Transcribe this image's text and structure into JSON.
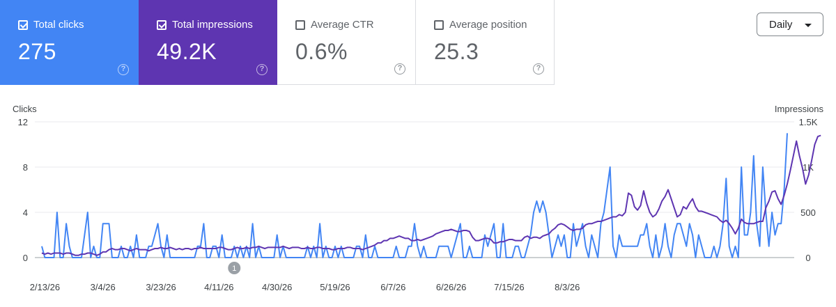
{
  "metrics": [
    {
      "label": "Total clicks",
      "value": "275",
      "checked": true,
      "color": "#4285f4"
    },
    {
      "label": "Total impressions",
      "value": "49.2K",
      "checked": true,
      "color": "#5e35b1"
    },
    {
      "label": "Average CTR",
      "value": "0.6%",
      "checked": false
    },
    {
      "label": "Average position",
      "value": "25.3",
      "checked": false
    }
  ],
  "help_glyph": "?",
  "period_select": {
    "value": "Daily"
  },
  "chart_data": {
    "type": "line",
    "axis_left": {
      "label": "Clicks",
      "ticks": [
        "12",
        "8",
        "4",
        "0"
      ],
      "range": [
        0,
        12
      ]
    },
    "axis_right": {
      "label": "Impressions",
      "ticks": [
        "1.5K",
        "1K",
        "500",
        "0"
      ],
      "range": [
        0,
        1500
      ]
    },
    "x_ticks": [
      "2/13/26",
      "3/4/26",
      "3/23/26",
      "4/11/26",
      "4/30/26",
      "5/19/26",
      "6/7/26",
      "6/26/26",
      "7/15/26",
      "8/3/26"
    ],
    "x_start": "2026-02-12",
    "annotation": {
      "label": "1",
      "date": "2026-04-16"
    },
    "series": [
      {
        "name": "Clicks",
        "axis": "left",
        "color": "#4285f4",
        "values": [
          1,
          0,
          0,
          0,
          0,
          4,
          0,
          0,
          3,
          1,
          0,
          0,
          0,
          0,
          2,
          4,
          0,
          1,
          0,
          0,
          3,
          3,
          3,
          0,
          0,
          0,
          1,
          0,
          0,
          1,
          0,
          2,
          0,
          0,
          0,
          1,
          1,
          2,
          3,
          1,
          0,
          2,
          0,
          0,
          0,
          0,
          0,
          0,
          0,
          0,
          0,
          1,
          1,
          3,
          0,
          0,
          1,
          1,
          0,
          2,
          0,
          0,
          0,
          1,
          0,
          1,
          0,
          1,
          0,
          3,
          0,
          1,
          0,
          0,
          0,
          0,
          0,
          2,
          0,
          1,
          0,
          0,
          0,
          0,
          0,
          0,
          0,
          1,
          0,
          1,
          0,
          3,
          0,
          1,
          0,
          0,
          1,
          0,
          1,
          0,
          0,
          0,
          0,
          1,
          1,
          0,
          2,
          0,
          0,
          1,
          0,
          0,
          0,
          0,
          0,
          0,
          1,
          0,
          0,
          0,
          1,
          1,
          3,
          1,
          0,
          1,
          0,
          0,
          0,
          0,
          1,
          1,
          1,
          1,
          0,
          1,
          2,
          3,
          0,
          0,
          1,
          0,
          0,
          0,
          0,
          2,
          1,
          2,
          3,
          0,
          0,
          3,
          0,
          0,
          0,
          1,
          1,
          0,
          0,
          1,
          2,
          4,
          5,
          4,
          5,
          4,
          2,
          0,
          1,
          2,
          1,
          2,
          0,
          0,
          3,
          1,
          2,
          3,
          1,
          0,
          2,
          1,
          0,
          3,
          4,
          6,
          8,
          1,
          0,
          2,
          1,
          1,
          1,
          1,
          1,
          1,
          2,
          2,
          3,
          1,
          0,
          2,
          0,
          1,
          3,
          1,
          0,
          2,
          3,
          3,
          2,
          1,
          3,
          2,
          0,
          2,
          1,
          0,
          0,
          0,
          1,
          0,
          1,
          3,
          7,
          1,
          0,
          1,
          0,
          8,
          2,
          2,
          4,
          9,
          3,
          1,
          8,
          4,
          1,
          4,
          2,
          3,
          3,
          6,
          11
        ]
      },
      {
        "name": "Impressions",
        "axis": "left-scaled",
        "color": "#5e35b1",
        "values": [
          0.4,
          0.3,
          0.4,
          0.3,
          0.4,
          0.4,
          0.4,
          0.3,
          0.4,
          0.4,
          0.3,
          0.2,
          0.2,
          0.3,
          0.3,
          0.4,
          0.4,
          0.3,
          0.2,
          0.3,
          0.5,
          0.5,
          0.7,
          0.8,
          0.7,
          0.7,
          0.8,
          0.8,
          0.7,
          0.6,
          0.7,
          0.8,
          0.7,
          0.7,
          0.7,
          0.6,
          0.7,
          0.8,
          0.8,
          0.9,
          0.8,
          0.8,
          0.9,
          0.8,
          0.7,
          0.8,
          0.7,
          0.8,
          0.8,
          0.7,
          0.8,
          0.8,
          0.9,
          0.8,
          0.8,
          0.8,
          0.8,
          0.8,
          0.9,
          0.9,
          0.8,
          0.7,
          0.7,
          0.8,
          0.9,
          0.8,
          0.8,
          0.9,
          0.8,
          0.9,
          0.9,
          1.0,
          0.9,
          0.8,
          0.9,
          0.9,
          0.9,
          0.9,
          0.9,
          1.0,
          0.9,
          0.8,
          0.9,
          0.9,
          0.9,
          0.8,
          0.8,
          0.9,
          0.8,
          0.8,
          0.9,
          0.9,
          0.8,
          0.8,
          0.8,
          0.7,
          0.7,
          0.8,
          0.8,
          0.8,
          0.9,
          0.9,
          0.8,
          0.8,
          0.8,
          0.7,
          0.8,
          0.9,
          1.0,
          1.1,
          1.3,
          1.3,
          1.5,
          1.5,
          1.7,
          1.7,
          1.8,
          1.9,
          1.8,
          1.7,
          1.7,
          1.5,
          1.5,
          1.6,
          1.5,
          1.6,
          1.7,
          1.8,
          1.9,
          2.1,
          2.2,
          2.3,
          2.4,
          2.4,
          2.5,
          2.4,
          2.3,
          2.3,
          2.4,
          2.4,
          2.3,
          1.8,
          1.5,
          1.5,
          1.6,
          1.7,
          1.7,
          1.6,
          1.3,
          1.3,
          1.4,
          1.4,
          1.5,
          1.6,
          1.6,
          1.5,
          1.5,
          1.5,
          1.8,
          1.9,
          1.7,
          1.8,
          1.8,
          1.7,
          1.9,
          2.0,
          2.1,
          2.4,
          2.6,
          2.9,
          3.0,
          2.9,
          2.7,
          2.5,
          2.4,
          2.5,
          2.5,
          2.6,
          2.9,
          3.0,
          3.0,
          3.1,
          3.2,
          3.2,
          3.3,
          3.4,
          3.5,
          3.6,
          3.6,
          3.8,
          3.7,
          4.0,
          5.7,
          5.5,
          4.5,
          4.2,
          4.6,
          5.9,
          4.8,
          4.0,
          3.6,
          3.8,
          4.3,
          5.0,
          5.4,
          6.0,
          5.2,
          4.4,
          3.6,
          3.8,
          4.5,
          4.3,
          4.8,
          5.2,
          4.5,
          4.1,
          4.1,
          4.0,
          3.9,
          3.8,
          3.7,
          3.6,
          3.3,
          3.1,
          3.3,
          3.0,
          2.6,
          2.1,
          2.6,
          3.4,
          3.1,
          3.0,
          3.0,
          3.0,
          3.1,
          3.2,
          3.2,
          4.4,
          5.0,
          5.8,
          5.9,
          5.2,
          4.7,
          5.5,
          6.5,
          7.7,
          9.0,
          10.3,
          9.0,
          7.9,
          6.5,
          7.3,
          8.6,
          10.0,
          10.7,
          10.8
        ]
      }
    ]
  }
}
